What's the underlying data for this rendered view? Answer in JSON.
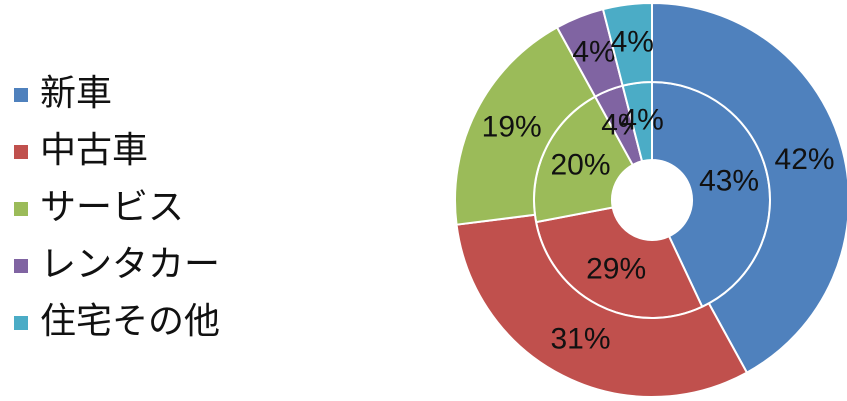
{
  "chart_data": {
    "type": "donut",
    "categories": [
      "新車",
      "中古車",
      "サービス",
      "レンタカー",
      "住宅その他"
    ],
    "colors": [
      "#4f81bd",
      "#c0504d",
      "#9bbb59",
      "#8064a2",
      "#4bacc6"
    ],
    "series": [
      {
        "values": [
          43,
          29,
          20,
          4,
          4
        ],
        "value_labels": [
          "43%",
          "29%",
          "20%",
          "4%",
          "4%"
        ]
      },
      {
        "values": [
          42,
          31,
          19,
          4,
          4
        ],
        "value_labels": [
          "42%",
          "31%",
          "19%",
          "4%",
          "4%"
        ]
      }
    ],
    "legend": "left"
  }
}
